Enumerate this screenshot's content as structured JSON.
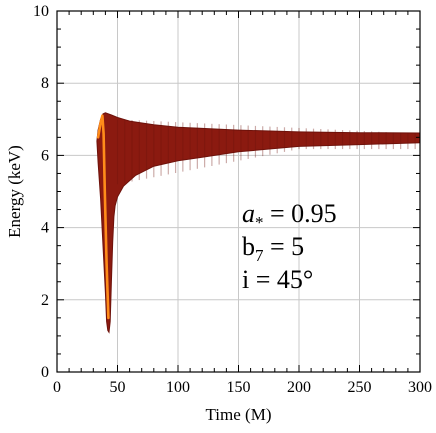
{
  "chart_data": {
    "type": "area",
    "xlabel": "Time (M)",
    "ylabel": "Energy (keV)",
    "xlim": [
      0,
      300
    ],
    "ylim": [
      0,
      10
    ],
    "xticks": [
      0,
      50,
      100,
      150,
      200,
      250,
      300
    ],
    "yticks": [
      0,
      2,
      4,
      6,
      8,
      10
    ],
    "grid": true,
    "colors": {
      "band": "#8b1a10",
      "band_dark": "#6e120b",
      "highlight": "#ff8c1a",
      "grid": "#c8c8c8"
    },
    "upper_edge": [
      [
        33,
        6.4
      ],
      [
        34,
        6.7
      ],
      [
        36,
        7.0
      ],
      [
        38,
        7.15
      ],
      [
        40,
        7.18
      ],
      [
        45,
        7.12
      ],
      [
        50,
        7.05
      ],
      [
        60,
        6.95
      ],
      [
        80,
        6.85
      ],
      [
        100,
        6.78
      ],
      [
        150,
        6.7
      ],
      [
        200,
        6.65
      ],
      [
        250,
        6.63
      ],
      [
        300,
        6.62
      ]
    ],
    "lower_edge": [
      [
        300,
        6.35
      ],
      [
        250,
        6.3
      ],
      [
        200,
        6.25
      ],
      [
        150,
        6.1
      ],
      [
        120,
        5.95
      ],
      [
        100,
        5.85
      ],
      [
        80,
        5.7
      ],
      [
        65,
        5.45
      ],
      [
        55,
        5.15
      ],
      [
        50,
        4.85
      ],
      [
        48,
        4.6
      ],
      [
        47,
        4.3
      ],
      [
        46,
        3.6
      ],
      [
        45,
        2.5
      ],
      [
        44,
        1.4
      ],
      [
        43,
        1.1
      ],
      [
        42,
        1.15
      ],
      [
        41,
        1.4
      ],
      [
        40,
        2.2
      ],
      [
        38,
        3.5
      ],
      [
        36,
        4.8
      ],
      [
        34,
        5.8
      ],
      [
        33,
        6.4
      ]
    ],
    "annotations": [
      {
        "sym": "a",
        "sub": "*",
        "rest": " = 0.95"
      },
      {
        "sym": "b",
        "sub": "7",
        "rest": " = 5"
      },
      {
        "sym": "i",
        "sub": "",
        "rest": " = 45°"
      }
    ]
  }
}
